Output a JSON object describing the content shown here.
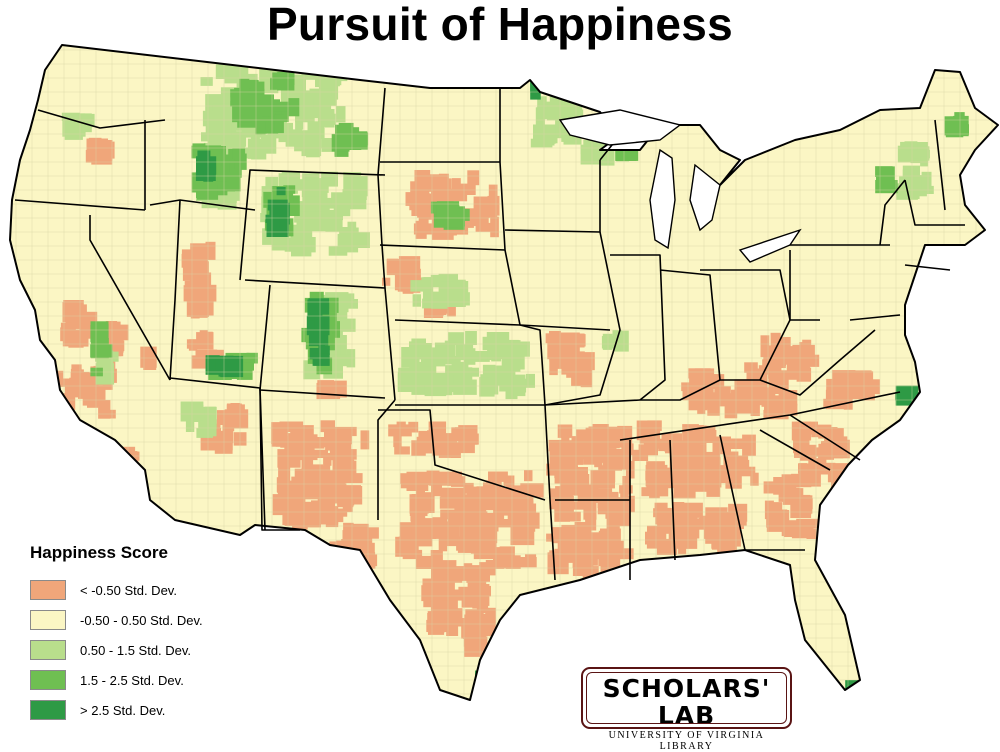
{
  "title": "Pursuit of Happiness",
  "legend": {
    "title": "Happiness Score",
    "items": [
      {
        "label": "< -0.50 Std. Dev.",
        "color": "#f0a67a"
      },
      {
        "label": "-0.50 - 0.50 Std. Dev.",
        "color": "#fbf6c4"
      },
      {
        "label": "0.50 - 1.5 Std. Dev.",
        "color": "#b9de8c"
      },
      {
        "label": "1.5 - 2.5 Std. Dev.",
        "color": "#6fbf52"
      },
      {
        "label": "> 2.5 Std. Dev.",
        "color": "#2e9a45"
      }
    ]
  },
  "logo": {
    "main": "SCHOLARS' LAB",
    "sub": "UNIVERSITY OF VIRGINIA LIBRARY"
  }
}
